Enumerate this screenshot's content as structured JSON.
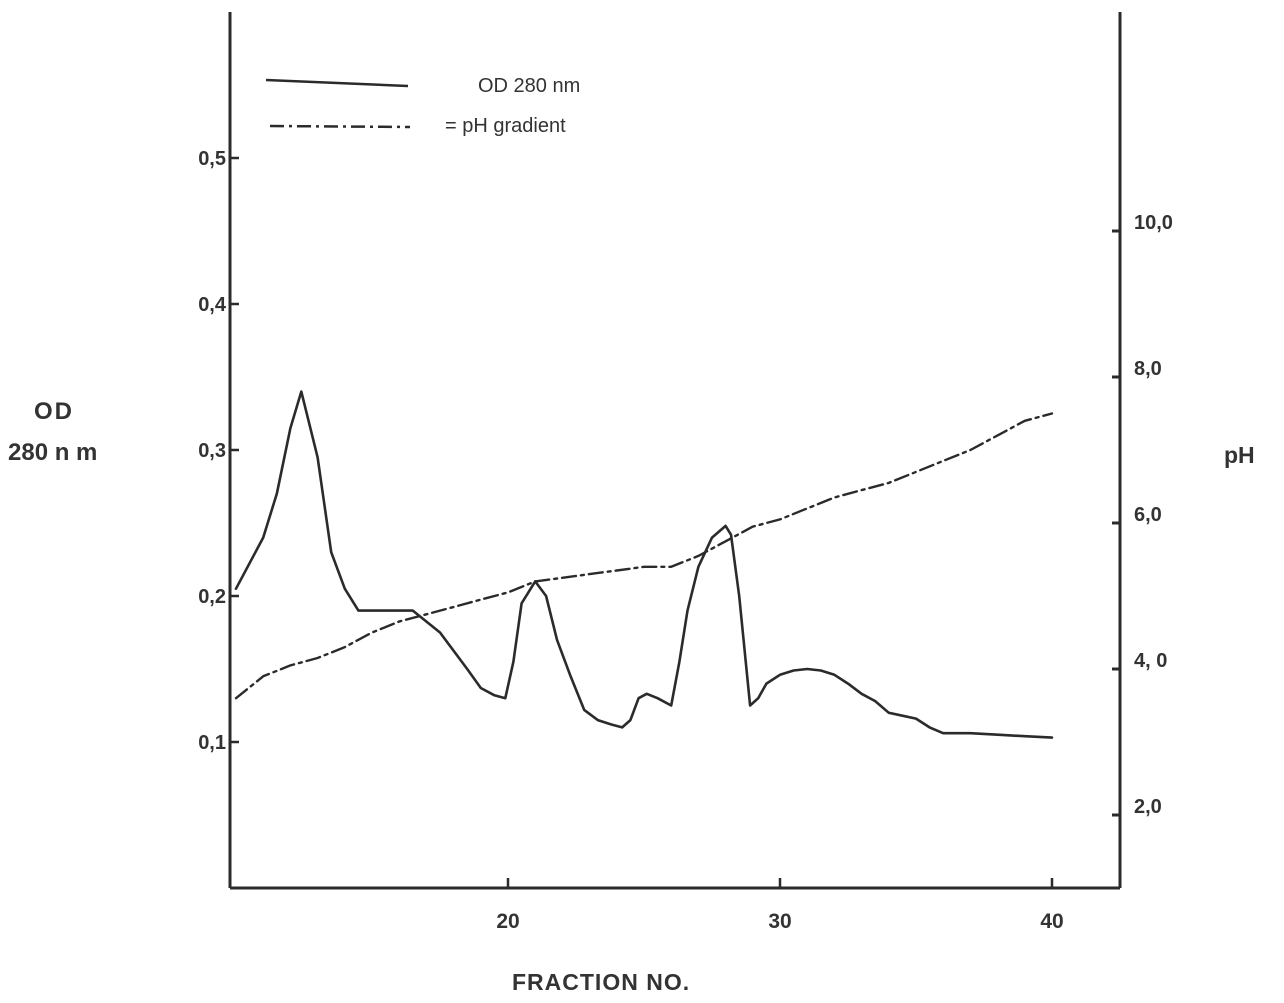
{
  "chart_data": {
    "type": "line",
    "title": "",
    "xlabel": "FRACTION NO.",
    "ylabel_left": [
      "OD",
      "280 n m"
    ],
    "ylabel_right": "pH",
    "xlim": [
      10,
      42
    ],
    "ylim_left": [
      0,
      0.6
    ],
    "ylim_right": [
      1.0,
      13.0
    ],
    "x_ticks": [
      20,
      30,
      40
    ],
    "x_tick_labels": [
      "20",
      "30",
      "40"
    ],
    "y_left_ticks": [
      0.1,
      0.2,
      0.3,
      0.4,
      0.5
    ],
    "y_left_tick_labels": [
      "0,1",
      "0,2",
      "0,3",
      "0,4",
      "0,5"
    ],
    "y_right_ticks": [
      2.0,
      4.0,
      6.0,
      8.0,
      10.0
    ],
    "y_right_tick_labels": [
      "2,0",
      "4, 0",
      "6,0",
      "8,0",
      "10,0"
    ],
    "grid": false,
    "legend_position": "top-left",
    "legend_labels": [
      "OD 280 nm",
      "= pH gradient"
    ],
    "series": [
      {
        "name": "OD 280 nm",
        "axis": "left",
        "style": "solid",
        "color": "#2b2b2b",
        "x": [
          10.0,
          11.0,
          11.5,
          12.0,
          12.4,
          13.0,
          13.5,
          14.0,
          14.5,
          15.5,
          16.5,
          17.5,
          18.5,
          19.0,
          19.5,
          19.9,
          20.2,
          20.5,
          21.0,
          21.4,
          21.8,
          22.3,
          22.8,
          23.3,
          23.8,
          24.2,
          24.5,
          24.8,
          25.1,
          25.5,
          26.0,
          26.3,
          26.6,
          27.0,
          27.5,
          28.0,
          28.2,
          28.5,
          28.9,
          29.2,
          29.5,
          30.0,
          30.5,
          31.0,
          31.5,
          32.0,
          32.5,
          33.0,
          33.5,
          34.0,
          34.5,
          35.0,
          35.5,
          36.0,
          37.0,
          38.0,
          39.0,
          40.0
        ],
        "y": [
          0.205,
          0.24,
          0.27,
          0.315,
          0.34,
          0.295,
          0.23,
          0.205,
          0.19,
          0.19,
          0.19,
          0.175,
          0.15,
          0.137,
          0.132,
          0.13,
          0.155,
          0.195,
          0.21,
          0.2,
          0.17,
          0.145,
          0.122,
          0.115,
          0.112,
          0.11,
          0.115,
          0.13,
          0.133,
          0.13,
          0.125,
          0.155,
          0.19,
          0.22,
          0.24,
          0.248,
          0.242,
          0.2,
          0.125,
          0.13,
          0.14,
          0.146,
          0.149,
          0.15,
          0.149,
          0.146,
          0.14,
          0.133,
          0.128,
          0.12,
          0.118,
          0.116,
          0.11,
          0.106,
          0.106,
          0.105,
          0.104,
          0.103
        ]
      },
      {
        "name": "pH gradient",
        "axis": "right",
        "style": "dash-dot",
        "color": "#2b2b2b",
        "x": [
          10.0,
          11.0,
          12.0,
          13.0,
          14.0,
          15.0,
          16.0,
          17.0,
          18.0,
          19.0,
          20.0,
          21.0,
          22.0,
          23.0,
          24.0,
          25.0,
          26.0,
          27.0,
          28.0,
          29.0,
          30.0,
          31.0,
          32.0,
          33.0,
          34.0,
          35.0,
          36.0,
          37.0,
          38.0,
          39.0,
          40.0
        ],
        "y": [
          3.6,
          3.9,
          4.05,
          4.15,
          4.3,
          4.5,
          4.65,
          4.75,
          4.85,
          4.95,
          5.05,
          5.2,
          5.25,
          5.3,
          5.35,
          5.4,
          5.4,
          5.55,
          5.75,
          5.95,
          6.05,
          6.2,
          6.35,
          6.45,
          6.55,
          6.7,
          6.85,
          7.0,
          7.2,
          7.4,
          7.5
        ]
      }
    ]
  }
}
